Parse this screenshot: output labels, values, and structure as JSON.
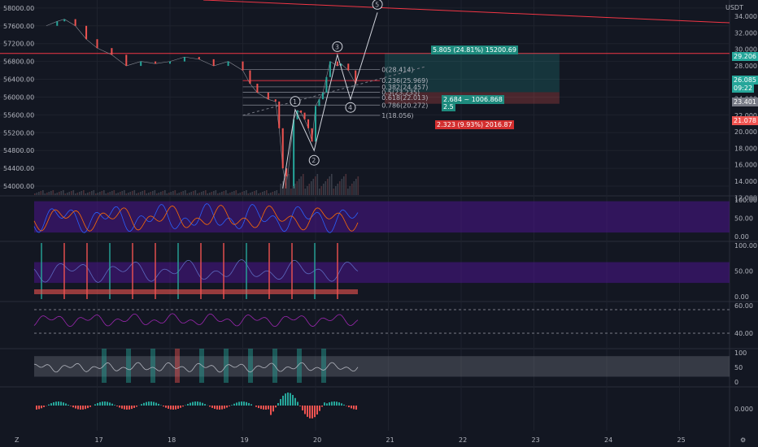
{
  "header": {
    "currency": "USDT"
  },
  "colors": {
    "bg": "#131722",
    "up": "#26a69a",
    "down": "#ef5350",
    "grid": "#1e222d",
    "purple_band": "#4a148c",
    "rsi": "#7e57c2",
    "red_line": "#f23645",
    "fib_gray": "#787b86",
    "white": "#d1d4dc"
  },
  "chart_data": [
    {
      "type": "line",
      "title": "",
      "y_left_ticks": [
        "58000.00",
        "57600.00",
        "57200.00",
        "56800.00",
        "56400.00",
        "56000.00",
        "55600.00",
        "55200.00",
        "54800.00",
        "54400.00",
        "54000.00"
      ],
      "y_right_ticks": [
        "34.000",
        "32.000",
        "30.000",
        "28.000",
        "26.000",
        "24.000",
        "22.000",
        "20.000",
        "18.000",
        "16.000",
        "14.000",
        "12.000"
      ],
      "ylim_left": [
        53800,
        58180
      ],
      "x_ticks": [
        "17",
        "18",
        "19",
        "20",
        "21",
        "22",
        "23",
        "24",
        "25"
      ],
      "price_series": {
        "name": "",
        "day": [
          16.3,
          16.45,
          16.55,
          16.7,
          16.85,
          17.0,
          17.2,
          17.4,
          17.6,
          17.8,
          18.0,
          18.2,
          18.4,
          18.6,
          18.8,
          19.0,
          19.1,
          19.2,
          19.35,
          19.45,
          19.5,
          19.55,
          19.6,
          19.7,
          19.75,
          19.8,
          19.85,
          19.9,
          19.95,
          20.0,
          20.05,
          20.1,
          20.15,
          20.2,
          20.3,
          20.35,
          20.45,
          20.55
        ],
        "value": [
          57600,
          57700,
          57750,
          57600,
          57300,
          57100,
          56950,
          56700,
          56800,
          56750,
          56800,
          56900,
          56850,
          56700,
          56800,
          56600,
          56300,
          56100,
          55950,
          55900,
          55300,
          54400,
          53950,
          55500,
          55700,
          55650,
          55500,
          55300,
          55000,
          55800,
          55950,
          56100,
          56450,
          56800,
          56700,
          56750,
          56600,
          56300
        ]
      },
      "wave_labels": [
        "1",
        "2",
        "3",
        "4",
        "5"
      ],
      "wave_points": [
        {
          "label": "1",
          "day": 19.72,
          "value": 55720
        },
        {
          "label": "2",
          "day": 19.98,
          "value": 54800
        },
        {
          "label": "3",
          "day": 20.3,
          "value": 56950
        },
        {
          "label": "4",
          "day": 20.48,
          "value": 55950
        },
        {
          "label": "5",
          "day": 20.85,
          "value": 57900
        }
      ],
      "fib_levels": [
        {
          "label": "0(28.414)",
          "value": 56620
        },
        {
          "label": "0.236(25.969)",
          "value": 56370
        },
        {
          "label": "0.382(24.457)",
          "value": 56230
        },
        {
          "label": "0.5(23.235)",
          "value": 56110
        },
        {
          "label": "0.618(22.013)",
          "value": 55990
        },
        {
          "label": "0.786(20.272)",
          "value": 55820
        },
        {
          "label": "1(18.056)",
          "value": 55590
        }
      ],
      "position_tool": {
        "target_label": "5.805 (24.81%) 15200.69",
        "center_label_1": "2.684 ~ 1006.868",
        "center_label_2": "2.5",
        "stop_label": "2.323 (9.93%) 2016.87"
      },
      "price_tags": [
        {
          "text": "29.206",
          "color": "#26a69a"
        },
        {
          "text": "26.085",
          "color": "#26a69a"
        },
        {
          "text": "09:22",
          "color": "#26a69a"
        },
        {
          "text": "23.401",
          "color": "#787b86"
        },
        {
          "text": "21.078",
          "color": "#ef5350"
        }
      ]
    },
    {
      "type": "line",
      "title": "",
      "y_ticks": [
        "100.00",
        "50.00",
        "0.00"
      ],
      "ylim": [
        0,
        100
      ]
    },
    {
      "type": "line",
      "title": "",
      "y_ticks": [
        "100.00",
        "50.00",
        "0.00"
      ],
      "ylim": [
        0,
        100
      ]
    },
    {
      "type": "line",
      "title": "",
      "y_ticks": [
        "60.00",
        "40.00"
      ],
      "ylim": [
        30,
        62
      ]
    },
    {
      "type": "line",
      "title": "",
      "y_ticks": [
        "100",
        "50",
        "0"
      ],
      "ylim": [
        0,
        100
      ]
    },
    {
      "type": "bar",
      "title": "",
      "y_ticks": [
        "0.000"
      ],
      "ylim": [
        -1,
        1
      ]
    }
  ],
  "bottom": {
    "logo_left": "Z",
    "logo_right": "⚙"
  }
}
